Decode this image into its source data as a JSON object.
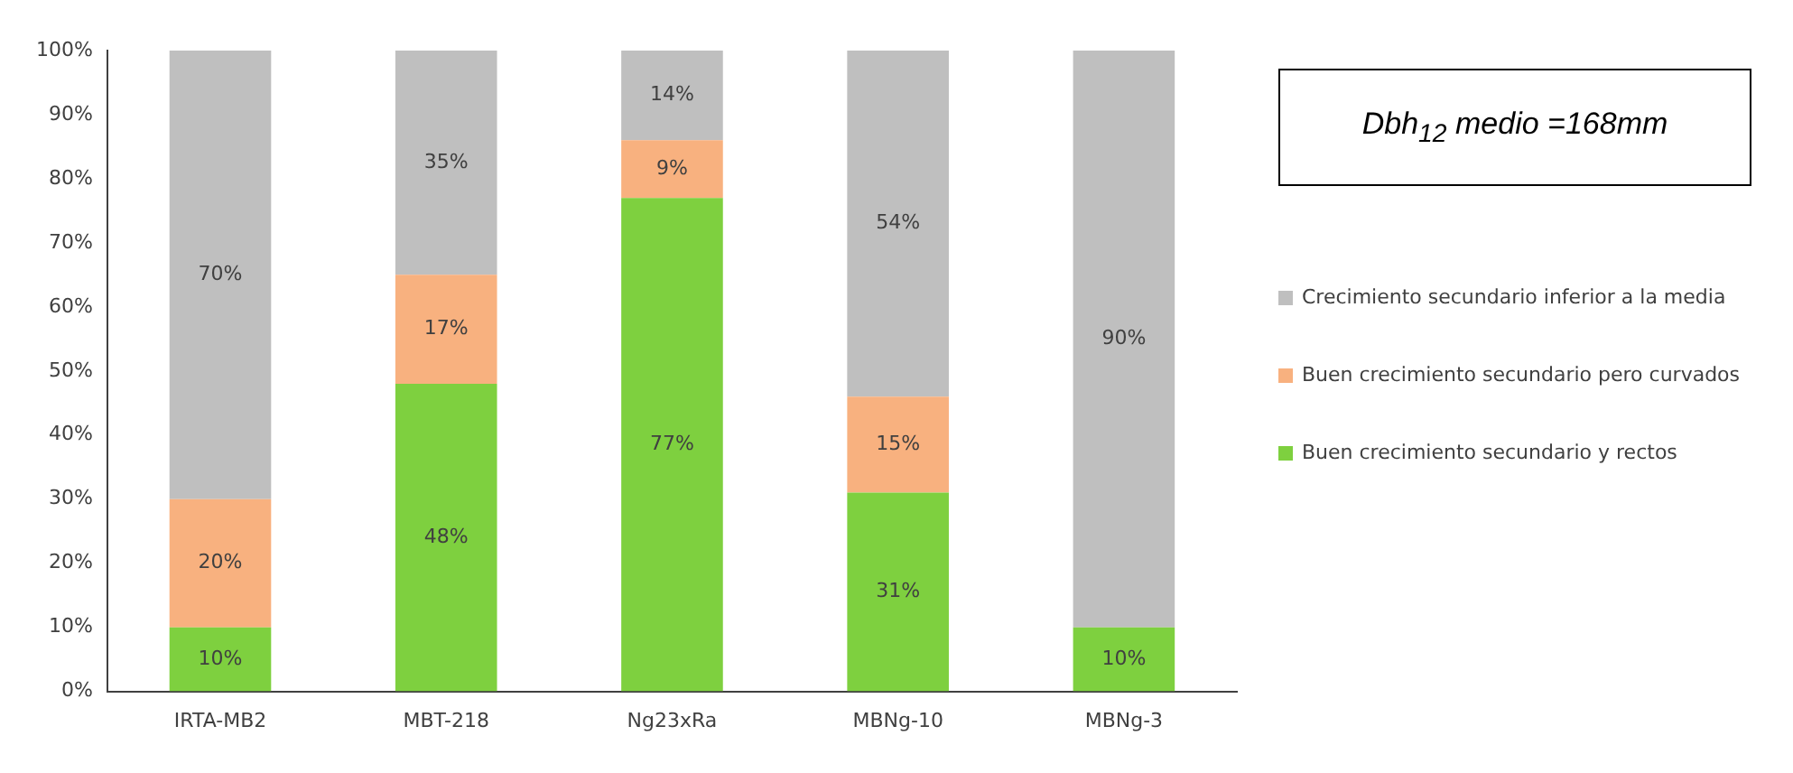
{
  "chart_data": {
    "type": "bar",
    "stacked": true,
    "categories": [
      "IRTA-MB2",
      "MBT-218",
      "Ng23xRa",
      "MBNg-10",
      "MBNg-3"
    ],
    "series": [
      {
        "name": "Buen crecimiento secundario y rectos",
        "color": "#7ed03f",
        "values": [
          10,
          48,
          77,
          31,
          10
        ],
        "value_labels": [
          "10%",
          "48%",
          "77%",
          "31%",
          "10%"
        ]
      },
      {
        "name": "Buen crecimiento secundario pero curvados",
        "color": "#f8b17f",
        "values": [
          20,
          17,
          9,
          15,
          0
        ],
        "value_labels": [
          "20%",
          "17%",
          "9%",
          "15%",
          null
        ]
      },
      {
        "name": "Crecimiento secundario inferior a la media",
        "color": "#bfbfbf",
        "values": [
          70,
          35,
          14,
          54,
          90
        ],
        "value_labels": [
          "70%",
          "35%",
          "14%",
          "54%",
          "90%"
        ]
      }
    ],
    "ylim": [
      0,
      100
    ],
    "yticks": [
      {
        "value": 0,
        "label": "0%"
      },
      {
        "value": 10,
        "label": "10%"
      },
      {
        "value": 20,
        "label": "20%"
      },
      {
        "value": 30,
        "label": "30%"
      },
      {
        "value": 40,
        "label": "40%"
      },
      {
        "value": 50,
        "label": "50%"
      },
      {
        "value": 60,
        "label": "60%"
      },
      {
        "value": 70,
        "label": "70%"
      },
      {
        "value": 80,
        "label": "80%"
      },
      {
        "value": 90,
        "label": "90%"
      },
      {
        "value": 100,
        "label": "100%"
      }
    ],
    "grid": false,
    "legend": "right",
    "annotations": [
      "Dbh$_{12}$ medio =168mm"
    ]
  }
}
